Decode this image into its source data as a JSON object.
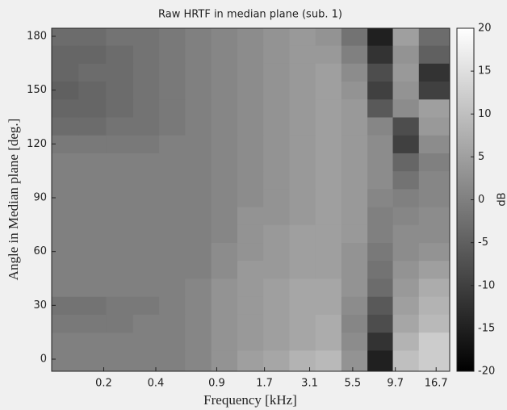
{
  "chart_data": {
    "type": "heatmap",
    "title": "Raw HRTF in median plane (sub. 1)",
    "x_label": "Frequency [kHz]",
    "y_label": "Angle in Median plane [deg.]",
    "colorbar_label": "dB",
    "log_x": true,
    "colormap": [
      "#000000",
      "#ffffff"
    ],
    "x": [
      0.12,
      0.17,
      0.25,
      0.35,
      0.5,
      0.7,
      1.0,
      1.4,
      2.0,
      2.8,
      4.0,
      5.6,
      8.0,
      11,
      16
    ],
    "y": [
      0,
      10,
      20,
      30,
      40,
      50,
      60,
      70,
      80,
      90,
      100,
      110,
      120,
      130,
      140,
      150,
      160,
      170,
      180
    ],
    "z": [
      [
        0,
        0,
        0,
        0,
        0,
        1,
        3,
        5,
        6,
        8,
        9,
        3,
        -15,
        10,
        12
      ],
      [
        0,
        0,
        0,
        0,
        0,
        1,
        3,
        4,
        5,
        6,
        7,
        2,
        -12,
        8,
        12
      ],
      [
        -1,
        -1,
        -1,
        0,
        0,
        1,
        3,
        4,
        5,
        6,
        7,
        1,
        -8,
        6,
        9
      ],
      [
        -2,
        -2,
        -1,
        -1,
        0,
        1,
        3,
        4,
        5,
        6,
        6,
        2,
        -6,
        5,
        8
      ],
      [
        0,
        0,
        0,
        0,
        0,
        1,
        3,
        4,
        5,
        6,
        6,
        3,
        -3,
        4,
        7
      ],
      [
        0,
        0,
        0,
        0,
        0,
        0,
        2,
        4,
        4,
        5,
        5,
        3,
        -2,
        3,
        5
      ],
      [
        0,
        0,
        0,
        0,
        0,
        0,
        2,
        3,
        4,
        5,
        5,
        3,
        -1,
        2,
        3
      ],
      [
        0,
        0,
        0,
        0,
        0,
        0,
        1,
        3,
        4,
        5,
        5,
        4,
        0,
        2,
        2
      ],
      [
        0,
        0,
        0,
        0,
        0,
        0,
        1,
        3,
        3,
        4,
        5,
        4,
        0,
        1,
        2
      ],
      [
        0,
        0,
        0,
        0,
        0,
        0,
        1,
        2,
        3,
        4,
        5,
        4,
        1,
        0,
        1
      ],
      [
        0,
        0,
        0,
        0,
        0,
        0,
        1,
        2,
        3,
        4,
        5,
        4,
        2,
        -2,
        1
      ],
      [
        0,
        0,
        0,
        0,
        0,
        0,
        1,
        2,
        3,
        4,
        5,
        4,
        2,
        -4,
        0
      ],
      [
        -1,
        -1,
        -1,
        -1,
        0,
        0,
        1,
        2,
        3,
        4,
        5,
        4,
        2,
        -10,
        2
      ],
      [
        -3,
        -3,
        -2,
        -2,
        -1,
        0,
        1,
        2,
        3,
        4,
        5,
        4,
        1,
        -8,
        4
      ],
      [
        -4,
        -4,
        -3,
        -2,
        -1,
        0,
        1,
        2,
        3,
        4,
        5,
        4,
        -6,
        2,
        5
      ],
      [
        -5,
        -4,
        -3,
        -2,
        -1,
        0,
        1,
        2,
        3,
        4,
        5,
        3,
        -10,
        3,
        -10
      ],
      [
        -4,
        -3,
        -3,
        -2,
        -1,
        0,
        1,
        2,
        3,
        4,
        5,
        2,
        -8,
        4,
        -12
      ],
      [
        -4,
        -4,
        -3,
        -2,
        -1,
        0,
        1,
        2,
        3,
        4,
        4,
        0,
        -12,
        3,
        -5
      ],
      [
        -3,
        -3,
        -2,
        -2,
        -1,
        0,
        1,
        2,
        3,
        4,
        3,
        -2,
        -15,
        5,
        -3
      ]
    ],
    "xlim": [
      0.1,
      20
    ],
    "xticks": [
      0.2,
      0.4,
      0.9,
      1.7,
      3.1,
      5.5,
      9.7,
      16.7
    ],
    "ylim": [
      -6.75,
      184.5
    ],
    "yticks": [
      0,
      30,
      60,
      90,
      120,
      150,
      180
    ],
    "zlim": [
      -20,
      20
    ],
    "zticks": [
      -20,
      -15,
      -10,
      -5,
      0,
      5,
      10,
      15,
      20
    ]
  }
}
